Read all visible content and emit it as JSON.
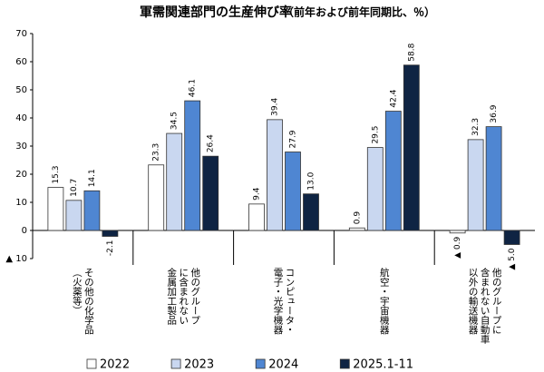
{
  "chart_data": {
    "type": "bar",
    "title": "軍需関連部門の生産伸び率",
    "subtitle": "（前年および前年同期比、％）",
    "categories": [
      [
        "その他の化学品",
        "（火薬等）"
      ],
      [
        "他のグループ",
        "に含まれない",
        "金属加工製品"
      ],
      [
        "コンピュータ・",
        "電子・光学機器"
      ],
      [
        "航空・宇宙機器"
      ],
      [
        "他のグループに",
        "含まれない自動車",
        "以外の輸送機器"
      ]
    ],
    "series": [
      {
        "name": "2022",
        "color": "#ffffff",
        "values": [
          15.3,
          23.3,
          9.4,
          0.9,
          -0.9
        ],
        "value_labels": [
          "15.3",
          "23.3",
          "9.4",
          "0.9",
          "▲ 0.9"
        ]
      },
      {
        "name": "2023",
        "color": "#c9d7f0",
        "values": [
          10.7,
          34.5,
          39.4,
          29.5,
          32.3
        ],
        "value_labels": [
          "10.7",
          "34.5",
          "39.4",
          "29.5",
          "32.3"
        ]
      },
      {
        "name": "2024",
        "color": "#4f86d2",
        "values": [
          14.1,
          46.1,
          27.9,
          42.4,
          36.9
        ],
        "value_labels": [
          "14.1",
          "46.1",
          "27.9",
          "42.4",
          "36.9"
        ]
      },
      {
        "name": "2025.1-11",
        "color": "#0f2443",
        "values": [
          -2.1,
          26.4,
          13.0,
          58.8,
          -5.0
        ],
        "value_labels": [
          "-2.1",
          "26.4",
          "13.0",
          "58.8",
          "▲ 5.0"
        ]
      }
    ],
    "ylim": [
      -10,
      70
    ],
    "yticks": [
      {
        "value": -10,
        "label": "▲ 10"
      },
      0,
      10,
      20,
      30,
      40,
      50,
      60,
      70
    ],
    "grid": false,
    "legend": "bottom"
  }
}
